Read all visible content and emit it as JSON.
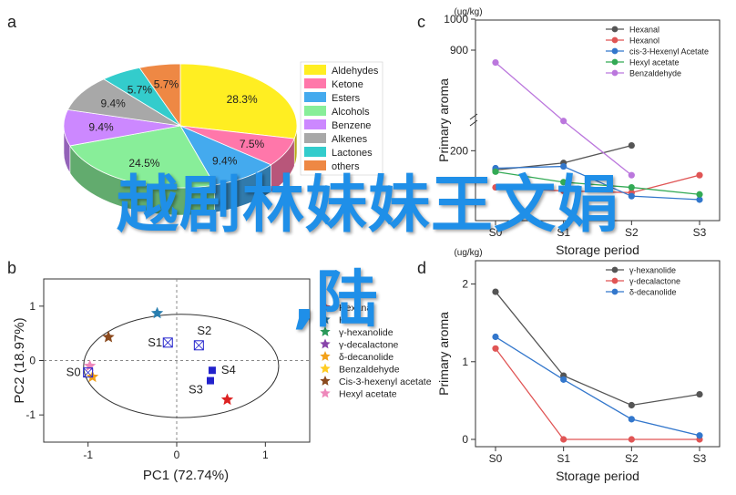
{
  "overlay_text": {
    "line1": "越剧林妹妹王文娟",
    "line2": ",陆"
  },
  "panels": {
    "a": "a",
    "b": "b",
    "c": "c",
    "d": "d"
  },
  "chart_data": [
    {
      "panel": "a",
      "type": "pie",
      "legend_position": "right",
      "slices": [
        {
          "name": "Aldehydes",
          "value": 28.3,
          "label": "28.3%",
          "color": "#ffee22"
        },
        {
          "name": "Ketone",
          "value": 7.5,
          "label": "7.5%",
          "color": "#ff77aa"
        },
        {
          "name": "Esters",
          "value": 9.4,
          "label": "9.4%",
          "color": "#44aaee"
        },
        {
          "name": "Alcohols",
          "value": 24.5,
          "label": "24.5%",
          "color": "#88ee99"
        },
        {
          "name": "Benzene",
          "value": 9.4,
          "label": "9.4%",
          "color": "#cc88ff"
        },
        {
          "name": "Alkenes",
          "value": 9.4,
          "label": "9.4%",
          "color": "#a8a8a8"
        },
        {
          "name": "Lactones",
          "value": 5.7,
          "label": "5.7%",
          "color": "#33cccc"
        },
        {
          "name": "others",
          "value": 5.7,
          "label": "5.7%",
          "color": "#ee8844"
        }
      ]
    },
    {
      "panel": "b",
      "type": "scatter",
      "xlabel": "PC1 (72.74%)",
      "ylabel": "PC2 (18.97%)",
      "xlim": [
        -1.5,
        1.5
      ],
      "ylim": [
        -1.5,
        1.5
      ],
      "xticks": [
        "-1",
        "0",
        "1"
      ],
      "yticks": [
        "1",
        "0",
        "-1"
      ],
      "legend": [
        {
          "name": "Hexanal",
          "color": "#dd2222"
        },
        {
          "name": "Hexanol",
          "color": "#2a7fb0"
        },
        {
          "name": "γ-hexanolide",
          "color": "#2a9a5a"
        },
        {
          "name": "γ-decalactone",
          "color": "#8844aa"
        },
        {
          "name": "δ-decanolide",
          "color": "#f2a11a"
        },
        {
          "name": "Benzaldehyde",
          "color": "#ffcc22"
        },
        {
          "name": "Cis-3-hexenyl acetate",
          "color": "#8b4a1e"
        },
        {
          "name": "Hexyl acetate",
          "color": "#ee88bb"
        }
      ],
      "points": [
        {
          "label": "S0",
          "x": -1.0,
          "y": -0.22,
          "color": "#2222cc"
        },
        {
          "label": "S1",
          "x": -0.1,
          "y": 0.33,
          "color": "#2222cc"
        },
        {
          "label": "S2",
          "x": 0.25,
          "y": 0.28,
          "color": "#2222cc"
        },
        {
          "label": "S3",
          "x": 0.38,
          "y": -0.37,
          "color": "#2222cc"
        },
        {
          "label": "S4",
          "x": 0.4,
          "y": -0.18,
          "color": "#2222cc"
        }
      ],
      "loadings": [
        {
          "series": "Hexanal",
          "x": 0.57,
          "y": -0.72
        },
        {
          "series": "Hexanol",
          "x": -0.22,
          "y": 0.87
        },
        {
          "series": "Cis-3-hexenyl acetate",
          "x": -0.77,
          "y": 0.43
        },
        {
          "series": "δ-decanolide",
          "x": -0.95,
          "y": -0.3
        },
        {
          "series": "Hexyl acetate",
          "x": -0.98,
          "y": -0.1
        }
      ]
    },
    {
      "panel": "c",
      "type": "line",
      "unit": "(ug/kg)",
      "xlabel": "Storage period",
      "ylabel": "Primary aroma",
      "categories": [
        "S0",
        "S1",
        "S2",
        "S3"
      ],
      "yticks": [
        "200",
        "900",
        "1000"
      ],
      "legend_position": "top-right",
      "series": [
        {
          "name": "Hexanal",
          "color": "#555555",
          "values": [
            145,
            165,
            215,
            null
          ]
        },
        {
          "name": "Hexanol",
          "color": "#e05555",
          "values": [
            95,
            85,
            80,
            130
          ]
        },
        {
          "name": "cis-3-Hexenyl Acetate",
          "color": "#3377cc",
          "values": [
            150,
            155,
            70,
            60
          ]
        },
        {
          "name": "Hexyl acetate",
          "color": "#33aa55",
          "values": [
            140,
            110,
            95,
            75
          ]
        },
        {
          "name": "Benzaldehyde",
          "color": "#bb77dd",
          "values": [
            860,
            285,
            130,
            null
          ]
        }
      ]
    },
    {
      "panel": "d",
      "type": "line",
      "unit": "(ug/kg)",
      "xlabel": "Storage period",
      "ylabel": "Primary aroma",
      "categories": [
        "S0",
        "S1",
        "S2",
        "S3"
      ],
      "ylim": [
        0,
        2.3
      ],
      "yticks": [
        0,
        1,
        2
      ],
      "legend_position": "top-right",
      "series": [
        {
          "name": "γ-hexanolide",
          "color": "#555555",
          "values": [
            1.9,
            0.82,
            0.44,
            0.58
          ]
        },
        {
          "name": "γ-decalactone",
          "color": "#e05555",
          "values": [
            1.17,
            0.0,
            0.0,
            0.0
          ]
        },
        {
          "name": "δ-decanolide",
          "color": "#3377cc",
          "values": [
            1.32,
            0.77,
            0.26,
            0.05
          ]
        }
      ]
    }
  ]
}
